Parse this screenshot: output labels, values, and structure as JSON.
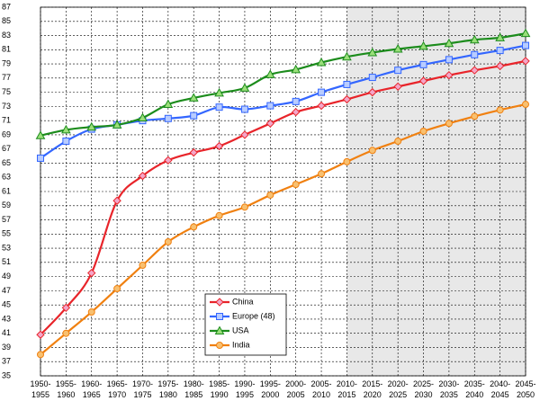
{
  "chart_data": {
    "type": "line",
    "categories": [
      "1950-1955",
      "1955-1960",
      "1960-1965",
      "1965-1970",
      "1970-1975",
      "1975-1980",
      "1980-1985",
      "1985-1990",
      "1990-1995",
      "1995-2000",
      "2000-2005",
      "2005-2010",
      "2010-2015",
      "2015-2020",
      "2020-2025",
      "2025-2030",
      "2030-2035",
      "2035-2040",
      "2040-2045",
      "2045-2050"
    ],
    "series": [
      {
        "name": "China",
        "color": "#e8242a",
        "marker": "diamond",
        "marker_fill": "#f4a6c8",
        "values": [
          40.8,
          44.6,
          49.5,
          59.7,
          63.2,
          65.4,
          66.5,
          67.4,
          69.0,
          70.6,
          72.2,
          73.1,
          74.0,
          75.0,
          75.8,
          76.6,
          77.4,
          78.1,
          78.7,
          79.4
        ]
      },
      {
        "name": "Europe (48)",
        "color": "#3366ff",
        "marker": "square",
        "marker_fill": "#b8ccff",
        "values": [
          65.7,
          68.1,
          69.8,
          70.4,
          71.0,
          71.3,
          71.7,
          72.9,
          72.6,
          73.1,
          73.7,
          75.0,
          76.1,
          77.1,
          78.1,
          78.9,
          79.6,
          80.3,
          80.9,
          81.6
        ]
      },
      {
        "name": "USA",
        "color": "#1c8c1c",
        "marker": "triangle",
        "marker_fill": "#9adf7a",
        "values": [
          68.9,
          69.7,
          70.1,
          70.4,
          71.4,
          73.3,
          74.2,
          74.9,
          75.6,
          77.5,
          78.2,
          79.2,
          80.0,
          80.6,
          81.1,
          81.5,
          81.9,
          82.4,
          82.7,
          83.3
        ]
      },
      {
        "name": "India",
        "color": "#f08010",
        "marker": "circle",
        "marker_fill": "#f8c070",
        "values": [
          38.0,
          41.0,
          44.0,
          47.3,
          50.6,
          53.9,
          56.0,
          57.6,
          58.8,
          60.5,
          62.0,
          63.5,
          65.2,
          66.8,
          68.1,
          69.5,
          70.6,
          71.6,
          72.5,
          73.3
        ]
      }
    ],
    "ylim": [
      35,
      87
    ],
    "yticks": [
      35,
      37,
      39,
      41,
      43,
      45,
      47,
      49,
      51,
      53,
      55,
      57,
      59,
      61,
      63,
      65,
      67,
      69,
      71,
      73,
      75,
      77,
      79,
      81,
      83,
      85,
      87
    ],
    "grid": true,
    "legend_position": "bottom-center"
  }
}
